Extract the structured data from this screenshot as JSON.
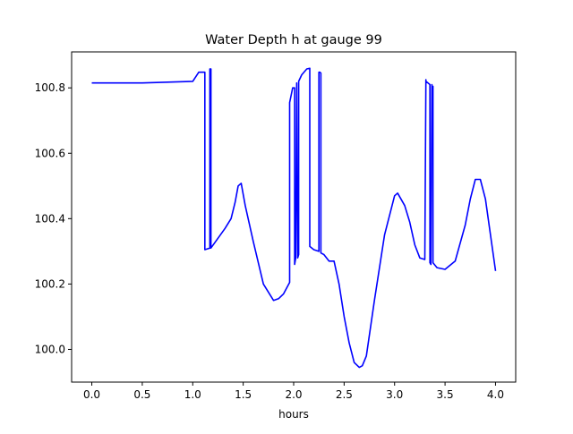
{
  "chart_data": {
    "type": "line",
    "title": "Water Depth h at gauge 99",
    "xlabel": "hours",
    "ylabel": "",
    "xlim": [
      -0.2,
      4.2
    ],
    "ylim": [
      99.9,
      100.91
    ],
    "xticks": [
      0.0,
      0.5,
      1.0,
      1.5,
      2.0,
      2.5,
      3.0,
      3.5,
      4.0
    ],
    "xtick_labels": [
      "0.0",
      "0.5",
      "1.0",
      "1.5",
      "2.0",
      "2.5",
      "3.0",
      "3.5",
      "4.0"
    ],
    "yticks": [
      100.0,
      100.2,
      100.4,
      100.6,
      100.8
    ],
    "ytick_labels": [
      "100.0",
      "100.2",
      "100.4",
      "100.6",
      "100.8"
    ],
    "grid": false,
    "series": [
      {
        "color": "#0000ff",
        "x": [
          0.0,
          0.5,
          1.0,
          1.06,
          1.12,
          1.12,
          1.17,
          1.17,
          1.18,
          1.18,
          1.25,
          1.32,
          1.38,
          1.42,
          1.45,
          1.48,
          1.52,
          1.6,
          1.7,
          1.8,
          1.85,
          1.9,
          1.96,
          1.96,
          1.99,
          2.01,
          2.01,
          2.02,
          2.03,
          2.03,
          2.04,
          2.05,
          2.05,
          2.08,
          2.13,
          2.16,
          2.16,
          2.2,
          2.25,
          2.25,
          2.26,
          2.27,
          2.27,
          2.3,
          2.35,
          2.4,
          2.45,
          2.5,
          2.55,
          2.6,
          2.65,
          2.68,
          2.72,
          2.8,
          2.9,
          3.0,
          3.03,
          3.1,
          3.15,
          3.2,
          3.25,
          3.3,
          3.31,
          3.31,
          3.35,
          3.35,
          3.36,
          3.37,
          3.37,
          3.38,
          3.38,
          3.42,
          3.5,
          3.6,
          3.7,
          3.75,
          3.8,
          3.85,
          3.9,
          4.0
        ],
        "y": [
          100.815,
          100.815,
          100.82,
          100.848,
          100.848,
          100.305,
          100.31,
          100.858,
          100.858,
          100.31,
          100.34,
          100.37,
          100.4,
          100.45,
          100.5,
          100.508,
          100.44,
          100.33,
          100.2,
          100.15,
          100.155,
          100.17,
          100.205,
          100.755,
          100.8,
          100.8,
          100.26,
          100.28,
          100.815,
          100.815,
          100.28,
          100.29,
          100.82,
          100.84,
          100.858,
          100.86,
          100.315,
          100.305,
          100.3,
          100.848,
          100.848,
          100.845,
          100.295,
          100.29,
          100.27,
          100.27,
          100.2,
          100.1,
          100.02,
          99.96,
          99.945,
          99.95,
          99.98,
          100.15,
          100.35,
          100.47,
          100.478,
          100.44,
          100.39,
          100.32,
          100.28,
          100.275,
          100.825,
          100.82,
          100.81,
          100.265,
          100.26,
          100.81,
          100.805,
          100.805,
          100.265,
          100.25,
          100.245,
          100.27,
          100.38,
          100.46,
          100.52,
          100.52,
          100.46,
          100.24
        ]
      }
    ]
  }
}
